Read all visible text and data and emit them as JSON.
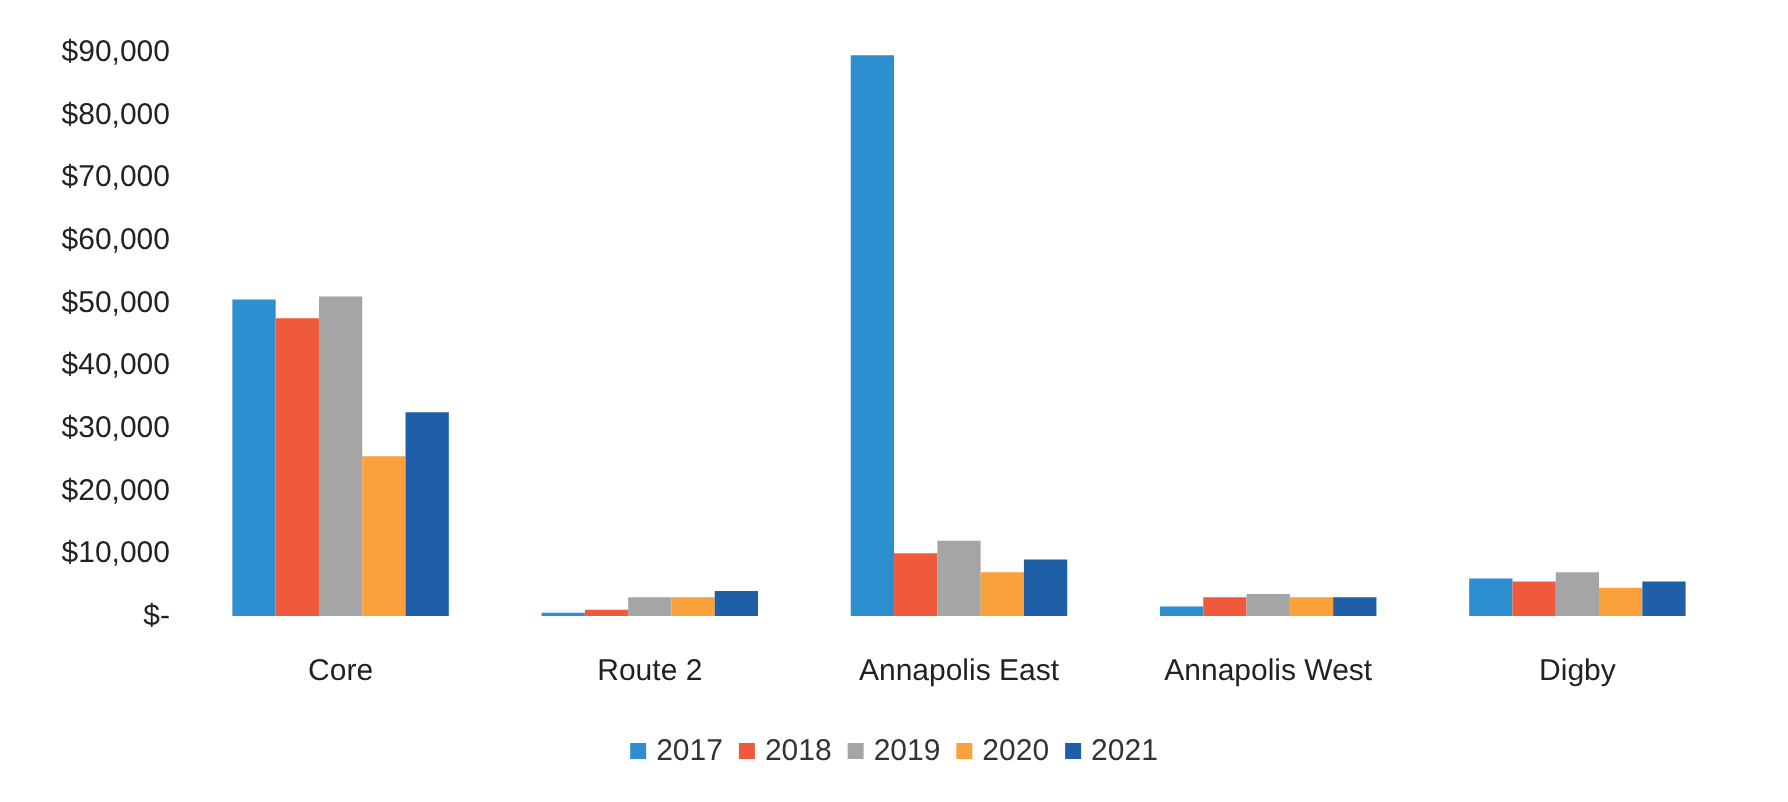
{
  "chart_data": {
    "type": "bar",
    "categories": [
      "Core",
      "Route 2",
      "Annapolis East",
      "Annapolis West",
      "Digby"
    ],
    "series": [
      {
        "name": "2017",
        "color": "#2e8fd0",
        "values": [
          50500,
          500,
          89500,
          1500,
          6000
        ]
      },
      {
        "name": "2018",
        "color": "#f05a3c",
        "values": [
          47500,
          1000,
          10000,
          3000,
          5500
        ]
      },
      {
        "name": "2019",
        "color": "#a5a5a5",
        "values": [
          51000,
          3000,
          12000,
          3500,
          7000
        ]
      },
      {
        "name": "2020",
        "color": "#f9a13a",
        "values": [
          25500,
          3000,
          7000,
          3000,
          4500
        ]
      },
      {
        "name": "2021",
        "color": "#1f5fa8",
        "values": [
          32500,
          4000,
          9000,
          3000,
          5500
        ]
      }
    ],
    "ylim": [
      0,
      90000
    ],
    "yticks": [
      {
        "value": 0,
        "label": "$-"
      },
      {
        "value": 10000,
        "label": "$10,000"
      },
      {
        "value": 20000,
        "label": "$20,000"
      },
      {
        "value": 30000,
        "label": "$30,000"
      },
      {
        "value": 40000,
        "label": "$40,000"
      },
      {
        "value": 50000,
        "label": "$50,000"
      },
      {
        "value": 60000,
        "label": "$60,000"
      },
      {
        "value": 70000,
        "label": "$70,000"
      },
      {
        "value": 80000,
        "label": "$80,000"
      },
      {
        "value": 90000,
        "label": "$90,000"
      }
    ],
    "grid": false,
    "legend": "bottom"
  }
}
